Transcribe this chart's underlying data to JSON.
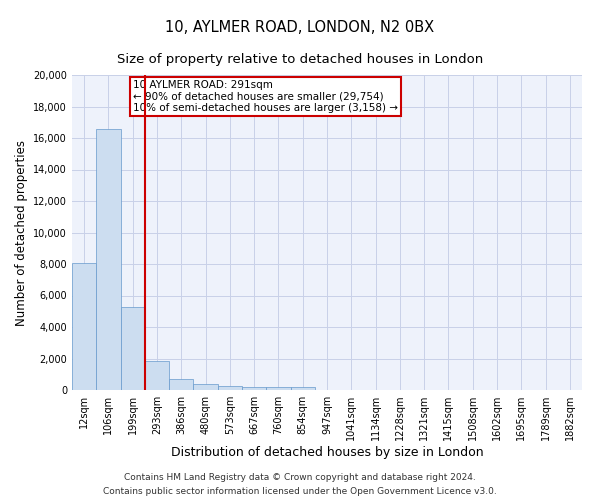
{
  "title_line1": "10, AYLMER ROAD, LONDON, N2 0BX",
  "title_line2": "Size of property relative to detached houses in London",
  "xlabel": "Distribution of detached houses by size in London",
  "ylabel": "Number of detached properties",
  "annotation_line1": "10 AYLMER ROAD: 291sqm",
  "annotation_line2": "← 90% of detached houses are smaller (29,754)",
  "annotation_line3": "10% of semi-detached houses are larger (3,158) →",
  "footer_line1": "Contains HM Land Registry data © Crown copyright and database right 2024.",
  "footer_line2": "Contains public sector information licensed under the Open Government Licence v3.0.",
  "bar_color": "#ccddf0",
  "bar_edge_color": "#6699cc",
  "vline_color": "#cc0000",
  "vline_x": 2.5,
  "annotation_box_color": "#cc0000",
  "background_color": "#eef2fb",
  "categories": [
    "12sqm",
    "106sqm",
    "199sqm",
    "293sqm",
    "386sqm",
    "480sqm",
    "573sqm",
    "667sqm",
    "760sqm",
    "854sqm",
    "947sqm",
    "1041sqm",
    "1134sqm",
    "1228sqm",
    "1321sqm",
    "1415sqm",
    "1508sqm",
    "1602sqm",
    "1695sqm",
    "1789sqm",
    "1882sqm"
  ],
  "values": [
    8050,
    16600,
    5300,
    1850,
    680,
    350,
    270,
    210,
    170,
    200,
    0,
    0,
    0,
    0,
    0,
    0,
    0,
    0,
    0,
    0,
    0
  ],
  "ylim": [
    0,
    20000
  ],
  "yticks": [
    0,
    2000,
    4000,
    6000,
    8000,
    10000,
    12000,
    14000,
    16000,
    18000,
    20000
  ],
  "grid_color": "#c8d0e8",
  "title_fontsize": 10.5,
  "subtitle_fontsize": 9.5,
  "ylabel_fontsize": 8.5,
  "xlabel_fontsize": 9,
  "tick_fontsize": 7,
  "annotation_fontsize": 7.5,
  "footer_fontsize": 6.5
}
